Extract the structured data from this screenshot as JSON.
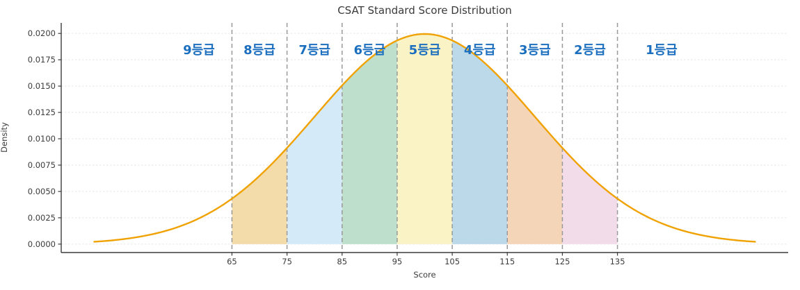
{
  "chart_data": {
    "type": "area",
    "title": "CSAT Standard Score Distribution",
    "xlabel": "Score",
    "ylabel": "Density",
    "xlim": [
      34,
      166
    ],
    "ylim": [
      -0.0008,
      0.021
    ],
    "xticks": [
      65,
      75,
      85,
      95,
      105,
      115,
      125,
      135
    ],
    "yticks": [
      {
        "value": 0.0,
        "label": "0.0000"
      },
      {
        "value": 0.0025,
        "label": "0.0025"
      },
      {
        "value": 0.005,
        "label": "0.0050"
      },
      {
        "value": 0.0075,
        "label": "0.0075"
      },
      {
        "value": 0.01,
        "label": "0.0100"
      },
      {
        "value": 0.0125,
        "label": "0.0125"
      },
      {
        "value": 0.015,
        "label": "0.0150"
      },
      {
        "value": 0.0175,
        "label": "0.0175"
      },
      {
        "value": 0.02,
        "label": "0.0200"
      }
    ],
    "grid": {
      "axis": "y",
      "color": "#e6e6e6",
      "style": "dashed",
      "on": true
    },
    "curve": {
      "kind": "normal_pdf",
      "mean": 100,
      "std": 20,
      "x_start": 40,
      "x_end": 160,
      "peak_density": 0.0199,
      "color": "#f0a202"
    },
    "boundaries": {
      "positions": [
        65,
        75,
        85,
        95,
        105,
        115,
        125,
        135
      ],
      "color": "#999999",
      "style": "dashed"
    },
    "regions": [
      {
        "label": "9등급",
        "x_start": 34,
        "x_end": 65,
        "fill": "none",
        "label_x": 59
      },
      {
        "label": "8등급",
        "x_start": 65,
        "x_end": 75,
        "fill": "#f3dcaa",
        "label_x": 70
      },
      {
        "label": "7등급",
        "x_start": 75,
        "x_end": 85,
        "fill": "#d5eaf8",
        "label_x": 80
      },
      {
        "label": "6등급",
        "x_start": 85,
        "x_end": 95,
        "fill": "#bedfcc",
        "label_x": 90
      },
      {
        "label": "5등급",
        "x_start": 95,
        "x_end": 105,
        "fill": "#f9f3c6",
        "label_x": 100
      },
      {
        "label": "4등급",
        "x_start": 105,
        "x_end": 115,
        "fill": "#bcd9ea",
        "label_x": 110
      },
      {
        "label": "3등급",
        "x_start": 115,
        "x_end": 125,
        "fill": "#f4d5b8",
        "label_x": 120
      },
      {
        "label": "2등급",
        "x_start": 125,
        "x_end": 135,
        "fill": "#f3dcea",
        "label_x": 130
      },
      {
        "label": "1등급",
        "x_start": 135,
        "x_end": 166,
        "fill": "none",
        "label_x": 143
      }
    ],
    "region_labels": {
      "color": "#1c6fbf",
      "y_density": 0.0184
    },
    "axes": {
      "spine_color": "#3b3b3b",
      "tick_label_color": "#3b3b3b",
      "title_color": "#3a3a3a"
    }
  }
}
